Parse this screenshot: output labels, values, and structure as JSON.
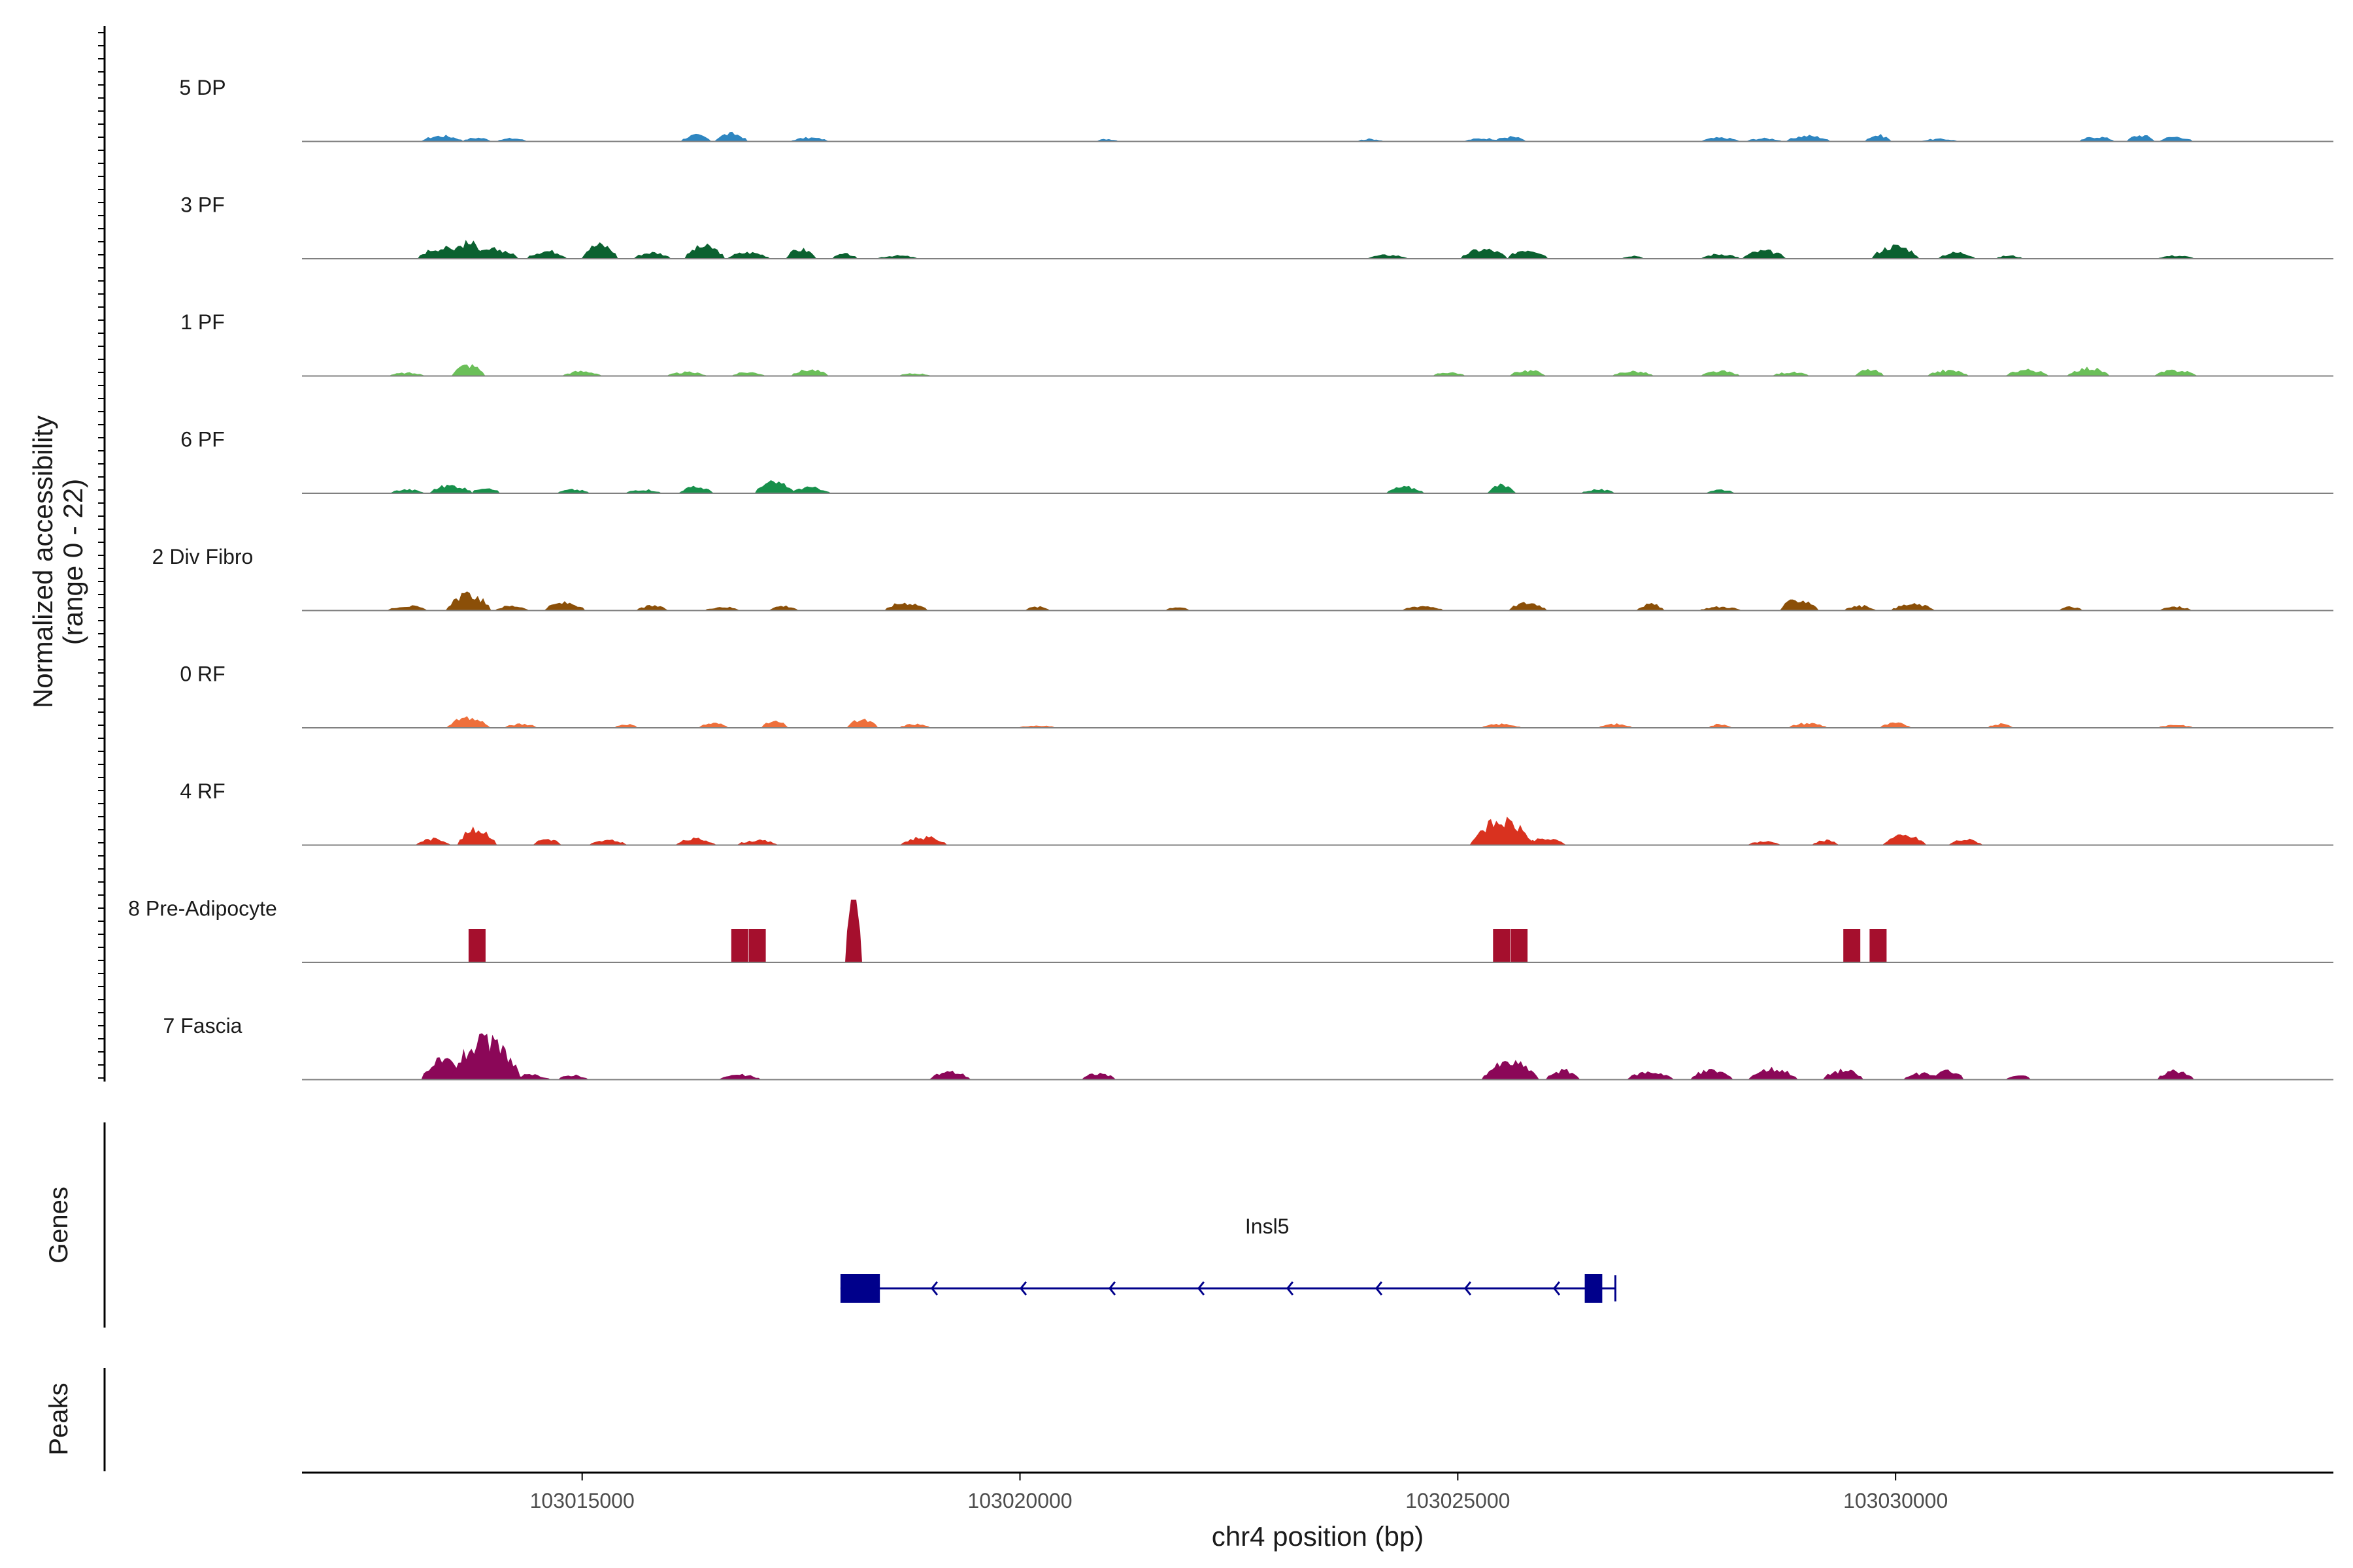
{
  "chart_data": {
    "type": "genome-coverage",
    "chromosome": "chr4",
    "xlim": [
      103011800,
      103035000
    ],
    "xlabel": "chr4 position (bp)",
    "xticks": [
      103015000,
      103020000,
      103025000,
      103030000
    ],
    "xtick_labels": [
      "103015000",
      "103020000",
      "103025000",
      "103030000"
    ],
    "ylabel_line1": "Normalized accessibility",
    "ylabel_line2": "(range 0 - 22)",
    "yrange": [
      0,
      22
    ],
    "tracks": [
      {
        "name": "5 DP",
        "color": "#2e86c1",
        "peaks": [
          [
            103013400,
            0.18
          ],
          [
            103013800,
            0.12
          ],
          [
            103014200,
            0.1
          ],
          [
            103016300,
            0.2
          ],
          [
            103016700,
            0.25
          ],
          [
            103017600,
            0.12
          ],
          [
            103021000,
            0.08
          ],
          [
            103024000,
            0.08
          ],
          [
            103025300,
            0.1
          ],
          [
            103025600,
            0.15
          ],
          [
            103028000,
            0.12
          ],
          [
            103028500,
            0.1
          ],
          [
            103029000,
            0.18
          ],
          [
            103029800,
            0.2
          ],
          [
            103030500,
            0.08
          ],
          [
            103032300,
            0.15
          ],
          [
            103032800,
            0.2
          ],
          [
            103033200,
            0.15
          ]
        ]
      },
      {
        "name": "3 PF",
        "color": "#0b6130",
        "peaks": [
          [
            103013400,
            0.35
          ],
          [
            103013700,
            0.5
          ],
          [
            103014000,
            0.3
          ],
          [
            103014600,
            0.25
          ],
          [
            103015200,
            0.45
          ],
          [
            103015800,
            0.2
          ],
          [
            103016400,
            0.4
          ],
          [
            103016900,
            0.2
          ],
          [
            103017500,
            0.3
          ],
          [
            103018000,
            0.15
          ],
          [
            103018600,
            0.1
          ],
          [
            103024200,
            0.12
          ],
          [
            103025300,
            0.3
          ],
          [
            103025800,
            0.3
          ],
          [
            103027000,
            0.1
          ],
          [
            103028000,
            0.15
          ],
          [
            103028500,
            0.25
          ],
          [
            103030000,
            0.4
          ],
          [
            103030700,
            0.2
          ],
          [
            103031300,
            0.1
          ],
          [
            103033200,
            0.1
          ]
        ]
      },
      {
        "name": "1 PF",
        "color": "#6bbf59",
        "peaks": [
          [
            103013000,
            0.1
          ],
          [
            103013700,
            0.35
          ],
          [
            103015000,
            0.15
          ],
          [
            103016200,
            0.12
          ],
          [
            103016900,
            0.12
          ],
          [
            103017600,
            0.2
          ],
          [
            103018800,
            0.08
          ],
          [
            103024900,
            0.12
          ],
          [
            103025800,
            0.18
          ],
          [
            103027000,
            0.15
          ],
          [
            103028000,
            0.15
          ],
          [
            103028800,
            0.12
          ],
          [
            103029700,
            0.2
          ],
          [
            103030600,
            0.18
          ],
          [
            103031500,
            0.2
          ],
          [
            103032200,
            0.25
          ],
          [
            103033200,
            0.18
          ]
        ]
      },
      {
        "name": "6 PF",
        "color": "#17904b",
        "peaks": [
          [
            103013000,
            0.12
          ],
          [
            103013500,
            0.25
          ],
          [
            103013900,
            0.2
          ],
          [
            103014900,
            0.12
          ],
          [
            103015700,
            0.12
          ],
          [
            103016300,
            0.2
          ],
          [
            103017200,
            0.35
          ],
          [
            103017600,
            0.18
          ],
          [
            103024400,
            0.2
          ],
          [
            103025500,
            0.25
          ],
          [
            103026600,
            0.12
          ],
          [
            103028000,
            0.12
          ]
        ]
      },
      {
        "name": "2 Div Fibro",
        "color": "#8b4f08",
        "peaks": [
          [
            103013000,
            0.15
          ],
          [
            103013700,
            0.5
          ],
          [
            103014200,
            0.15
          ],
          [
            103014800,
            0.25
          ],
          [
            103015800,
            0.15
          ],
          [
            103016600,
            0.12
          ],
          [
            103017300,
            0.15
          ],
          [
            103018700,
            0.25
          ],
          [
            103020200,
            0.12
          ],
          [
            103021800,
            0.12
          ],
          [
            103024600,
            0.15
          ],
          [
            103025800,
            0.25
          ],
          [
            103027200,
            0.2
          ],
          [
            103028000,
            0.12
          ],
          [
            103028900,
            0.35
          ],
          [
            103029600,
            0.15
          ],
          [
            103030200,
            0.2
          ],
          [
            103032000,
            0.12
          ],
          [
            103033200,
            0.12
          ]
        ]
      },
      {
        "name": "0 RF",
        "color": "#ee6f3b",
        "peaks": [
          [
            103013700,
            0.3
          ],
          [
            103014300,
            0.12
          ],
          [
            103015500,
            0.12
          ],
          [
            103016500,
            0.15
          ],
          [
            103017200,
            0.2
          ],
          [
            103018200,
            0.25
          ],
          [
            103018800,
            0.12
          ],
          [
            103020200,
            0.08
          ],
          [
            103025500,
            0.12
          ],
          [
            103026800,
            0.12
          ],
          [
            103028000,
            0.12
          ],
          [
            103029000,
            0.15
          ],
          [
            103030000,
            0.15
          ],
          [
            103031200,
            0.12
          ],
          [
            103033200,
            0.1
          ]
        ]
      },
      {
        "name": "4 RF",
        "color": "#d9321f",
        "peaks": [
          [
            103013300,
            0.2
          ],
          [
            103013800,
            0.5
          ],
          [
            103014600,
            0.2
          ],
          [
            103015300,
            0.15
          ],
          [
            103016300,
            0.2
          ],
          [
            103017000,
            0.15
          ],
          [
            103018900,
            0.25
          ],
          [
            103025500,
            0.75
          ],
          [
            103026000,
            0.2
          ],
          [
            103028500,
            0.12
          ],
          [
            103029200,
            0.15
          ],
          [
            103030100,
            0.3
          ],
          [
            103030800,
            0.18
          ]
        ]
      },
      {
        "name": "8 Pre-Adipocyte",
        "color": "#a50f2d",
        "peaks": [
          [
            103013800,
            0.85
          ],
          [
            103016800,
            0.85
          ],
          [
            103017000,
            0.85
          ],
          [
            103018100,
            1.6
          ],
          [
            103025500,
            0.85
          ],
          [
            103025700,
            0.85
          ],
          [
            103029500,
            0.85
          ],
          [
            103029800,
            0.85
          ]
        ]
      },
      {
        "name": "7 Fascia",
        "color": "#8b0758",
        "peaks": [
          [
            103013400,
            0.6
          ],
          [
            103013900,
            1.2
          ],
          [
            103014400,
            0.15
          ],
          [
            103014900,
            0.15
          ],
          [
            103016800,
            0.15
          ],
          [
            103019200,
            0.25
          ],
          [
            103020900,
            0.2
          ],
          [
            103025600,
            0.55
          ],
          [
            103026200,
            0.3
          ],
          [
            103027200,
            0.25
          ],
          [
            103027900,
            0.3
          ],
          [
            103028600,
            0.35
          ],
          [
            103029400,
            0.3
          ],
          [
            103030300,
            0.2
          ],
          [
            103030600,
            0.3
          ],
          [
            103031400,
            0.15
          ],
          [
            103033200,
            0.3
          ]
        ]
      }
    ],
    "genes": [
      {
        "name": "Insl5",
        "start": 103017950,
        "end": 103026800,
        "strand": "-",
        "exons": [
          [
            103017950,
            103018400
          ],
          [
            103026450,
            103026650
          ]
        ]
      }
    ],
    "panel_labels": {
      "genes": "Genes",
      "peaks": "Peaks"
    }
  }
}
